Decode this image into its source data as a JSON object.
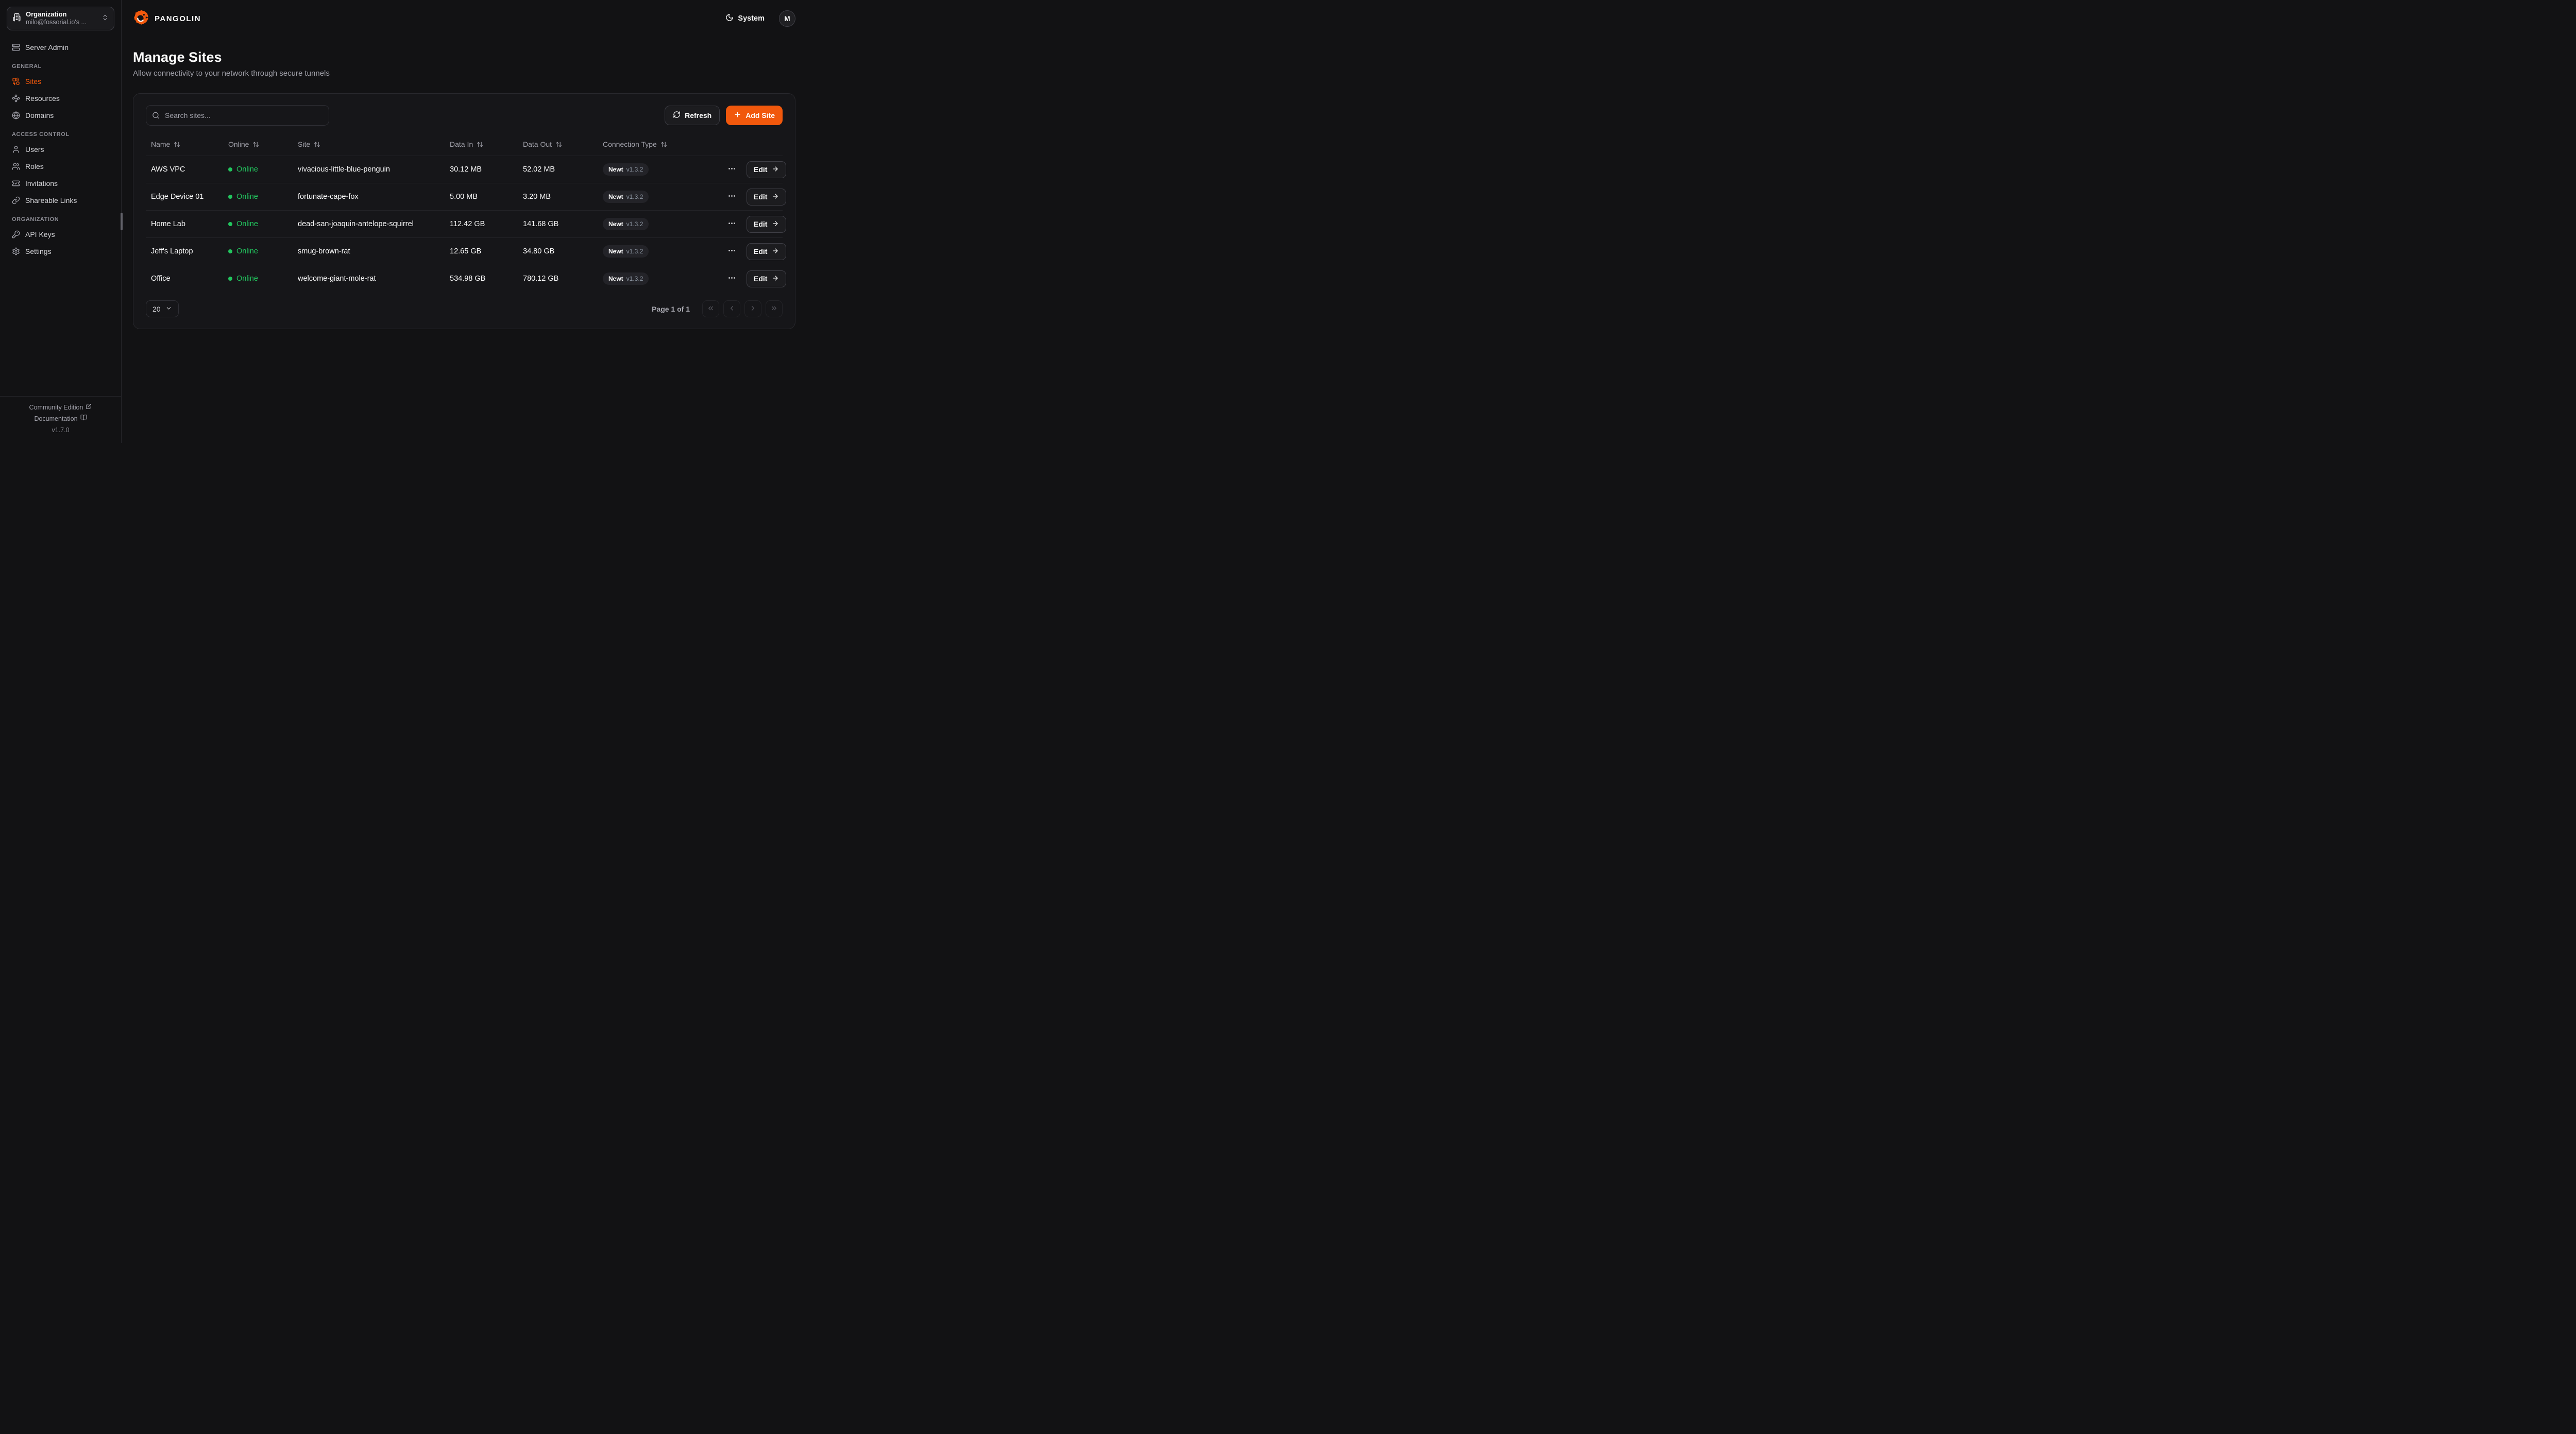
{
  "colors": {
    "accent": "#F1580C",
    "online_green": "#22c55e"
  },
  "brand": {
    "name": "PANGOLIN",
    "logo_icon": "pangolin-logo-icon"
  },
  "header": {
    "theme_label": "System",
    "theme_icon": "moon-icon",
    "avatar_initial": "M"
  },
  "sidebar": {
    "org_switcher": {
      "label": "Organization",
      "value": "milo@fossorial.io's ...",
      "icon": "building-icon",
      "chevron_icon": "chevrons-up-down-icon"
    },
    "top_items": [
      {
        "label": "Server Admin",
        "icon": "server-icon",
        "active": false
      }
    ],
    "sections": [
      {
        "label": "GENERAL",
        "items": [
          {
            "label": "Sites",
            "icon": "sites-icon",
            "active": true
          },
          {
            "label": "Resources",
            "icon": "waypoints-icon",
            "active": false
          },
          {
            "label": "Domains",
            "icon": "globe-icon",
            "active": false
          }
        ]
      },
      {
        "label": "ACCESS CONTROL",
        "items": [
          {
            "label": "Users",
            "icon": "user-icon",
            "active": false
          },
          {
            "label": "Roles",
            "icon": "users-icon",
            "active": false
          },
          {
            "label": "Invitations",
            "icon": "ticket-check-icon",
            "active": false
          },
          {
            "label": "Shareable Links",
            "icon": "link-icon",
            "active": false
          }
        ]
      },
      {
        "label": "ORGANIZATION",
        "items": [
          {
            "label": "API Keys",
            "icon": "key-icon",
            "active": false
          },
          {
            "label": "Settings",
            "icon": "gear-icon",
            "active": false
          }
        ]
      }
    ],
    "footer": {
      "community_label": "Community Edition",
      "community_icon": "external-link-icon",
      "docs_label": "Documentation",
      "docs_icon": "book-open-icon",
      "version": "v1.7.0"
    }
  },
  "page": {
    "title": "Manage Sites",
    "subtitle": "Allow connectivity to your network through secure tunnels"
  },
  "toolbar": {
    "search_placeholder": "Search sites...",
    "refresh_label": "Refresh",
    "add_site_label": "Add Site"
  },
  "table": {
    "columns": [
      "Name",
      "Online",
      "Site",
      "Data In",
      "Data Out",
      "Connection Type"
    ],
    "rows": [
      {
        "name": "AWS VPC",
        "status": "Online",
        "site": "vivacious-little-blue-penguin",
        "data_in": "30.12 MB",
        "data_out": "52.02 MB",
        "connection": "Newt",
        "version": "v1.3.2",
        "edit_label": "Edit"
      },
      {
        "name": "Edge Device 01",
        "status": "Online",
        "site": "fortunate-cape-fox",
        "data_in": "5.00 MB",
        "data_out": "3.20 MB",
        "connection": "Newt",
        "version": "v1.3.2",
        "edit_label": "Edit"
      },
      {
        "name": "Home Lab",
        "status": "Online",
        "site": "dead-san-joaquin-antelope-squirrel",
        "data_in": "112.42 GB",
        "data_out": "141.68 GB",
        "connection": "Newt",
        "version": "v1.3.2",
        "edit_label": "Edit"
      },
      {
        "name": "Jeff's Laptop",
        "status": "Online",
        "site": "smug-brown-rat",
        "data_in": "12.65 GB",
        "data_out": "34.80 GB",
        "connection": "Newt",
        "version": "v1.3.2",
        "edit_label": "Edit"
      },
      {
        "name": "Office",
        "status": "Online",
        "site": "welcome-giant-mole-rat",
        "data_in": "534.98 GB",
        "data_out": "780.12 GB",
        "connection": "Newt",
        "version": "v1.3.2",
        "edit_label": "Edit"
      }
    ]
  },
  "pagination": {
    "page_size": "20",
    "page_info": "Page 1 of 1"
  }
}
